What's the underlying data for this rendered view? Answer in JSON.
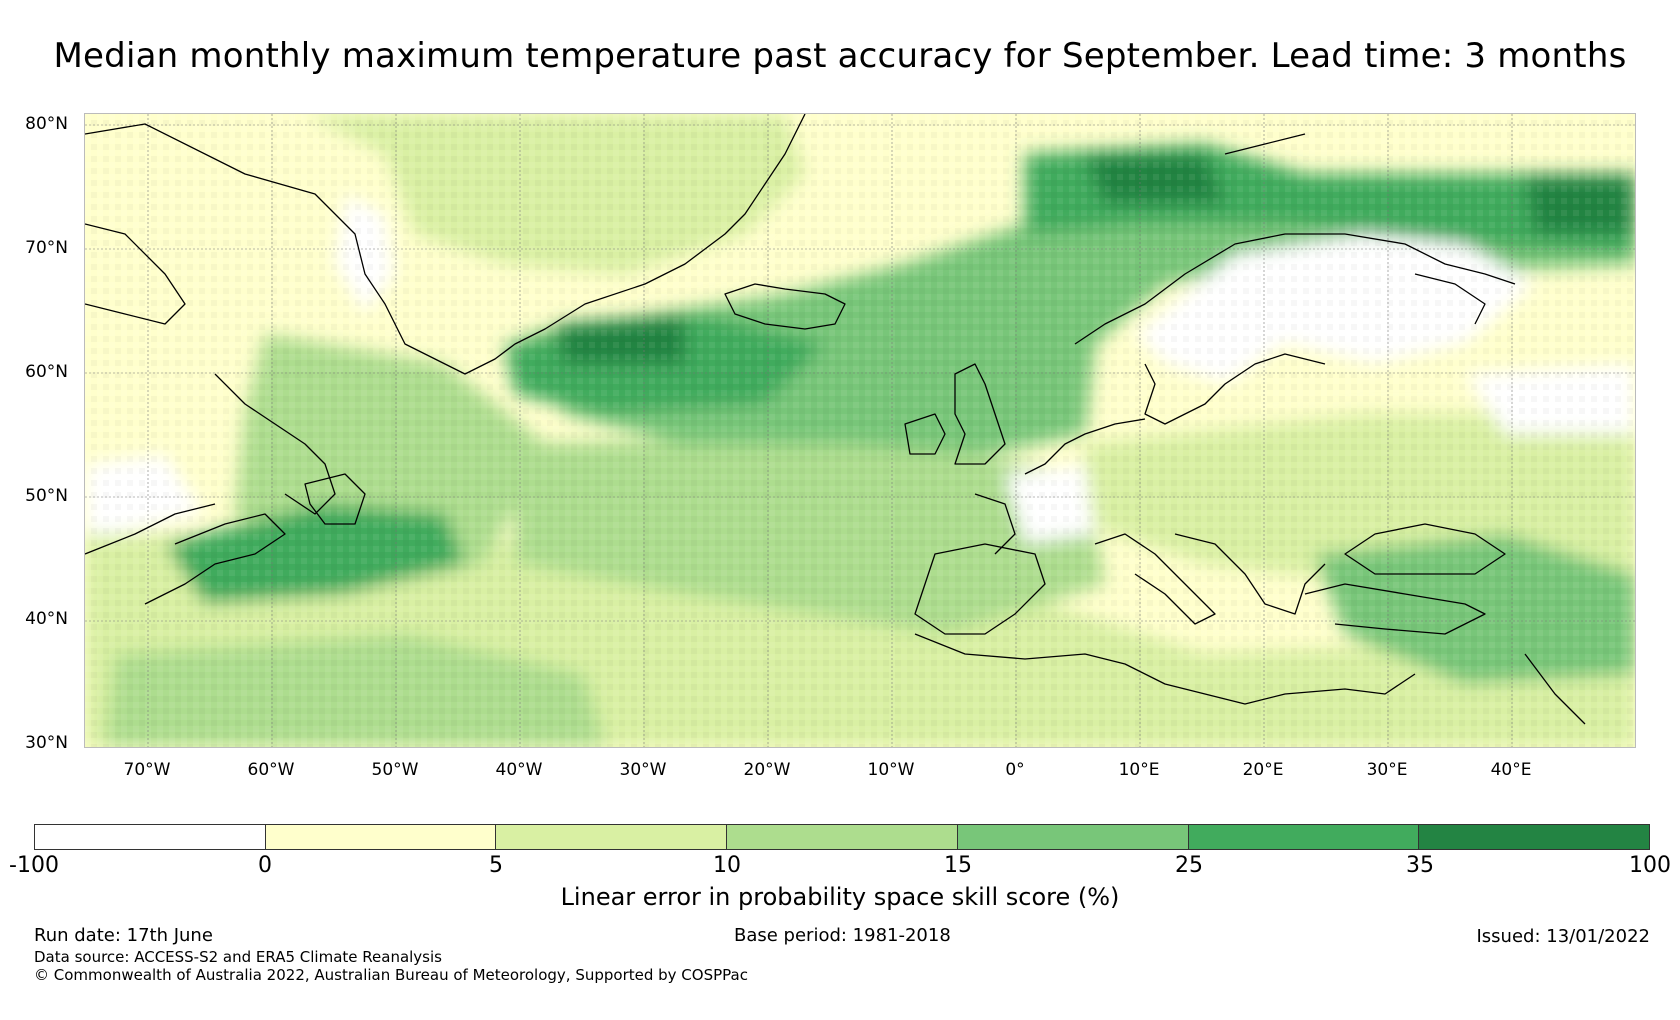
{
  "title": "Median monthly maximum temperature past accuracy for September. Lead time: 3 months",
  "map": {
    "lat_labels": [
      "80°N",
      "70°N",
      "60°N",
      "50°N",
      "40°N",
      "30°N"
    ],
    "lon_labels": [
      "70°W",
      "60°W",
      "50°W",
      "40°W",
      "30°W",
      "20°W",
      "10°W",
      "0°",
      "10°E",
      "20°E",
      "30°E",
      "40°E"
    ],
    "features": [
      "Greenland",
      "Iceland",
      "Scandinavia",
      "British Isles",
      "Iberia",
      "Mediterranean",
      "Black Sea",
      "Newfoundland"
    ]
  },
  "colorbar": {
    "ticks": [
      "-100",
      "0",
      "5",
      "10",
      "15",
      "25",
      "35",
      "100"
    ],
    "colors": [
      "#ffffff",
      "#ffffcc",
      "#d9f0a3",
      "#addd8e",
      "#78c679",
      "#41ab5d",
      "#238443"
    ],
    "label": "Linear error in probability space skill score (%)"
  },
  "footer": {
    "run_date": "Run date: 17th June",
    "base_period": "Base period: 1981-2018",
    "issued": "Issued: 13/01/2022",
    "data_source": "Data source: ACCESS-S2 and ERA5 Climate Reanalysis",
    "copyright": "© Commonwealth of Australia 2022, Australian Bureau of Meteorology, Supported by COSPPac"
  }
}
